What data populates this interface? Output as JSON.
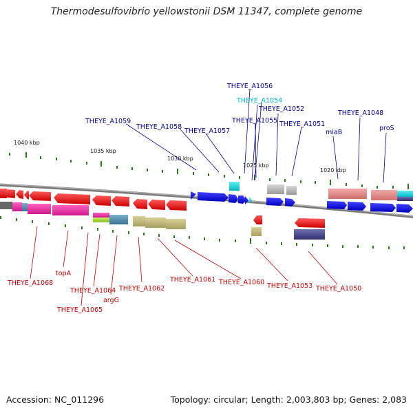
{
  "title": "Thermodesulfovibrio yellowstonii DSM 11347, complete genome",
  "accession": "Accession: NC_011296",
  "topology": "Topology: circular; Length: 2,003,803 bp; Genes: 2,083",
  "colors": {
    "backbone": "#888888",
    "forward_label": "#00008b",
    "forward_label_alt": "#00b0d0",
    "reverse_label": "#c00000",
    "tick": "#2a7a1a"
  },
  "scale_labels": [
    "1040 kbp",
    "1035 kbp",
    "1030 kbp",
    "1025 kbp",
    "1020 kbp"
  ],
  "forward_labels": [
    {
      "text": "THEYE_A1056",
      "color": "blue"
    },
    {
      "text": "THEYE_A1054",
      "color": "cyan"
    },
    {
      "text": "THEYE_A1052",
      "color": "blue"
    },
    {
      "text": "THEYE_A1055",
      "color": "blue"
    },
    {
      "text": "THEYE_A1059",
      "color": "blue"
    },
    {
      "text": "THEYE_A1058",
      "color": "blue"
    },
    {
      "text": "THEYE_A1057",
      "color": "blue"
    },
    {
      "text": "THEYE_A1051",
      "color": "blue"
    },
    {
      "text": "THEYE_A1048",
      "color": "blue"
    },
    {
      "text": "miaB",
      "color": "blue"
    },
    {
      "text": "proS",
      "color": "blue"
    }
  ],
  "reverse_labels": [
    {
      "text": "THEYE_A1068"
    },
    {
      "text": "topA"
    },
    {
      "text": "THEYE_A1064"
    },
    {
      "text": "argG"
    },
    {
      "text": "THEYE_A1065"
    },
    {
      "text": "THEYE_A1062"
    },
    {
      "text": "THEYE_A1061"
    },
    {
      "text": "THEYE_A1060"
    },
    {
      "text": "THEYE_A1053"
    },
    {
      "text": "THEYE_A1050"
    }
  ]
}
